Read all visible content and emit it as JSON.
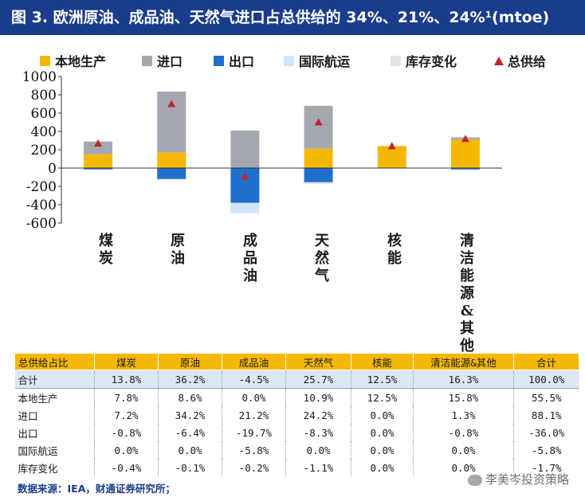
{
  "title": "图 3. 欧洲原油、成品油、天然气进口占总供给的 34%、21%、24%¹(mtoe)",
  "chart_data": {
    "type": "bar",
    "stacked": true,
    "categories": [
      "煤炭",
      "原油",
      "成品油",
      "天然气",
      "核能",
      "清洁能源&其他"
    ],
    "series": [
      {
        "name": "本地生产",
        "color": "#f5b800",
        "values": [
          150,
          170,
          0,
          210,
          240,
          310
        ]
      },
      {
        "name": "进口",
        "color": "#a5a8ae",
        "values": [
          140,
          665,
          410,
          470,
          0,
          25
        ]
      },
      {
        "name": "出口",
        "color": "#1f6fcc",
        "values": [
          -15,
          -120,
          -380,
          -155,
          0,
          -15
        ]
      },
      {
        "name": "国际航运",
        "color": "#cfe4f8",
        "values": [
          0,
          0,
          -110,
          0,
          0,
          0
        ]
      },
      {
        "name": "库存变化",
        "color": "#e3e3e3",
        "values": [
          -5,
          -5,
          -5,
          -20,
          0,
          0
        ]
      }
    ],
    "total_supply": {
      "name": "总供给",
      "color": "#c0262d",
      "values": [
        270,
        700,
        -90,
        500,
        240,
        320
      ]
    },
    "ylim": [
      -600,
      1000
    ],
    "yticks": [
      1000,
      800,
      600,
      400,
      200,
      0,
      -200,
      -400,
      -600
    ],
    "ytick_labels": [
      "1000",
      "800",
      "600",
      "400",
      "200",
      "0",
      "-200",
      "-400",
      "-600"
    ],
    "xlabel": "",
    "ylabel": ""
  },
  "table": {
    "headers": [
      "总供给占比",
      "煤炭",
      "原油",
      "成品油",
      "天然气",
      "核能",
      "清洁能源&其他",
      "合计"
    ],
    "rows": [
      [
        "合计",
        "13.8%",
        "36.2%",
        "-4.5%",
        "25.7%",
        "12.5%",
        "16.3%",
        "100.0%"
      ],
      [
        "本地生产",
        "7.8%",
        "8.6%",
        "0.0%",
        "10.9%",
        "12.5%",
        "15.8%",
        "55.5%"
      ],
      [
        "进口",
        "7.2%",
        "34.2%",
        "21.2%",
        "24.2%",
        "0.0%",
        "1.3%",
        "88.1%"
      ],
      [
        "出口",
        "-0.8%",
        "-6.4%",
        "-19.7%",
        "-8.3%",
        "0.0%",
        "-0.8%",
        "-36.0%"
      ],
      [
        "国际航运",
        "0.0%",
        "0.0%",
        "-5.8%",
        "0.0%",
        "0.0%",
        "0.0%",
        "-5.8%"
      ],
      [
        "库存变化",
        "-0.4%",
        "-0.1%",
        "-0.2%",
        "-1.1%",
        "0.0%",
        "0.0%",
        "-1.7%"
      ]
    ]
  },
  "source": "数据来源：IEA，财通证券研究所；",
  "watermark": "李美岑投资策略"
}
